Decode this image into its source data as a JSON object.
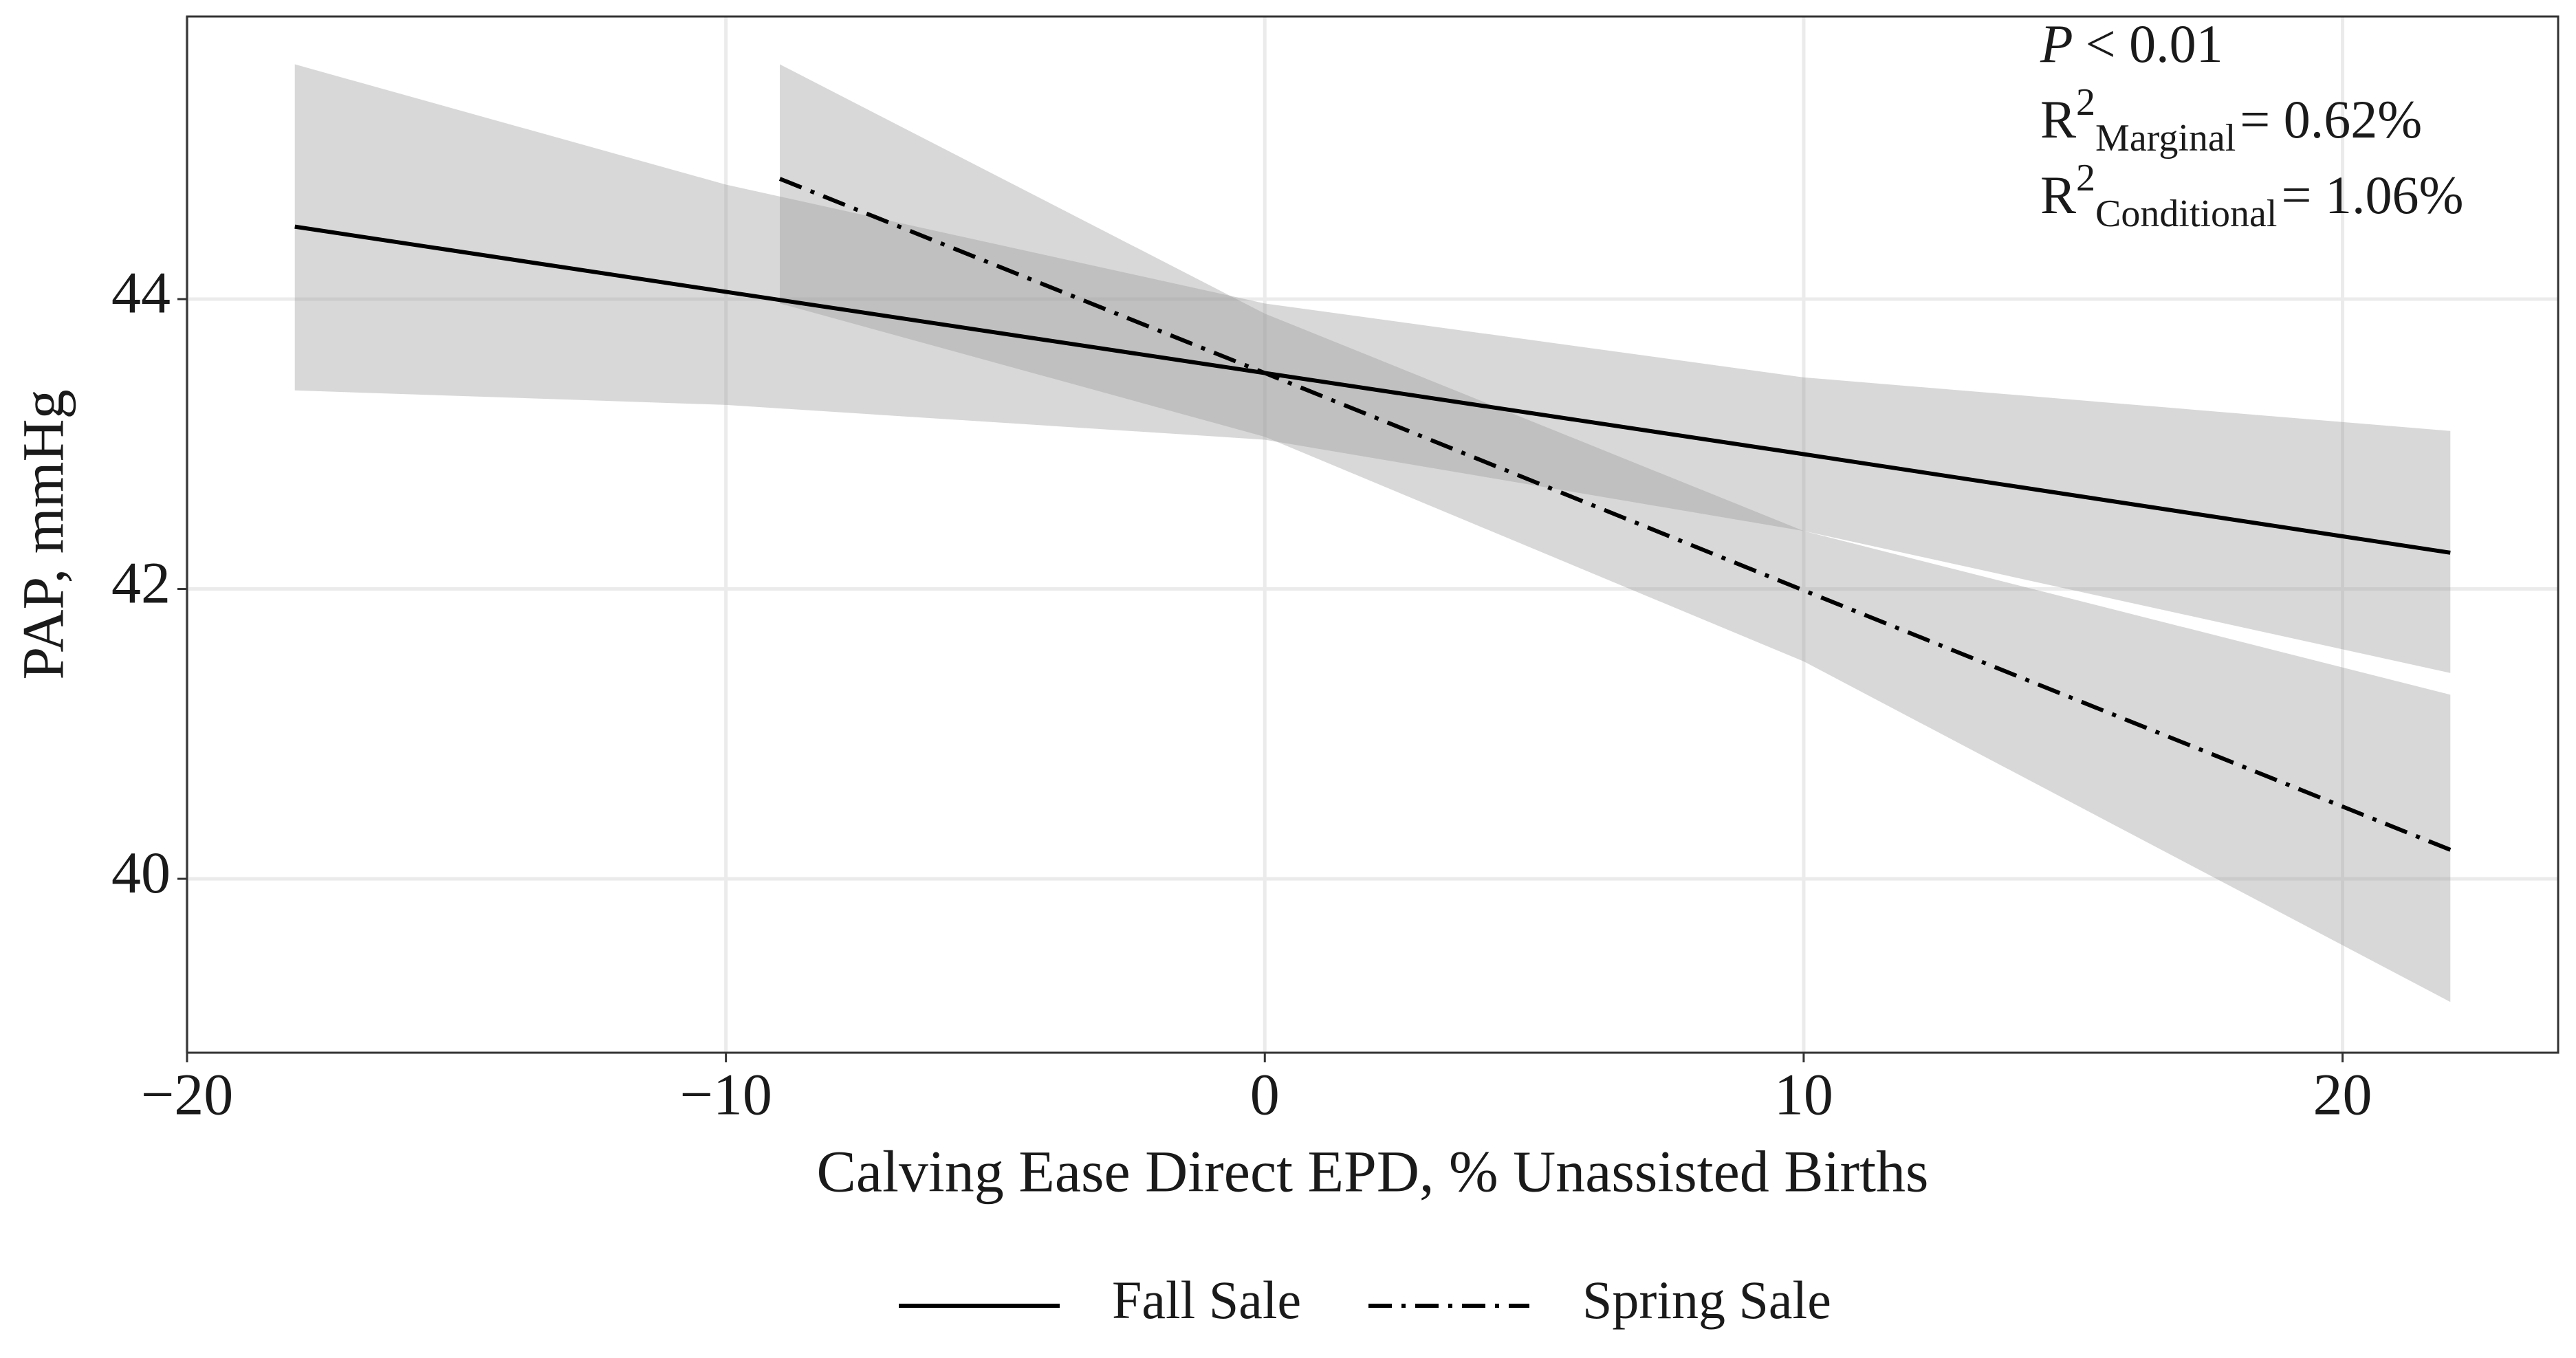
{
  "chart_data": {
    "type": "line",
    "x_label": "Calving Ease Direct EPD, % Unassisted Births",
    "y_label": "PAP, mmHg",
    "xlim": [
      -20,
      24
    ],
    "ylim": [
      38.8,
      45.95
    ],
    "xticks": [
      {
        "value": -20,
        "label": "−20"
      },
      {
        "value": -10,
        "label": "−10"
      },
      0,
      10,
      20
    ],
    "yticks": [
      40,
      42,
      44
    ],
    "grid": true,
    "legend": "bottom",
    "band_color": "#999999",
    "annotations": [
      {
        "symbol": "P",
        "text": "< 0.01"
      },
      {
        "symbol": "R",
        "sup": "2",
        "sub": "Marginal",
        "text": "= 0.62%"
      },
      {
        "symbol": "R",
        "sup": "2",
        "sub": "Conditional",
        "text": "= 1.06%"
      }
    ],
    "series": [
      {
        "name": "Fall Sale",
        "color": "#000000",
        "dash": "solid",
        "x": [
          -18,
          -10,
          0,
          10,
          22
        ],
        "values": [
          44.5,
          44.05,
          43.49,
          42.93,
          42.25
        ],
        "lower": [
          43.37,
          43.27,
          43.03,
          42.4,
          41.42
        ],
        "upper": [
          45.62,
          44.79,
          43.97,
          43.46,
          43.09
        ]
      },
      {
        "name": "Spring Sale",
        "color": "#000000",
        "dash": "dashdot",
        "x": [
          -9,
          0,
          10,
          22
        ],
        "values": [
          44.83,
          43.49,
          41.99,
          40.2
        ],
        "lower": [
          43.97,
          43.05,
          41.5,
          39.15
        ],
        "upper": [
          45.62,
          43.9,
          42.4,
          41.27
        ]
      }
    ]
  }
}
